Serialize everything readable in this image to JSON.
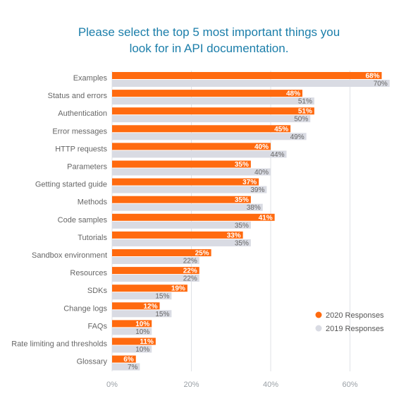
{
  "chart_data": {
    "type": "bar",
    "orientation": "horizontal",
    "title_lines": [
      "Please select the top 5 most important things you",
      "look for in API documentation."
    ],
    "categories": [
      "Examples",
      "Status and errors",
      "Authentication",
      "Error messages",
      "HTTP requests",
      "Parameters",
      "Getting started guide",
      "Methods",
      "Code samples",
      "Tutorials",
      "Sandbox environment",
      "Resources",
      "SDKs",
      "Change logs",
      "FAQs",
      "Rate limiting and thresholds",
      "Glossary"
    ],
    "series": [
      {
        "name": "2020 Responses",
        "color": "#ff6a0f",
        "values": [
          68,
          48,
          51,
          45,
          40,
          35,
          37,
          35,
          41,
          33,
          25,
          22,
          19,
          12,
          10,
          11,
          6
        ]
      },
      {
        "name": "2019 Responses",
        "color": "#d9dbe3",
        "values": [
          70,
          51,
          50,
          49,
          44,
          40,
          39,
          38,
          35,
          35,
          22,
          22,
          15,
          15,
          10,
          10,
          7
        ]
      }
    ],
    "xlim": [
      0,
      70
    ],
    "xticks": [
      "0%",
      "20%",
      "40%",
      "60%"
    ],
    "xtick_values": [
      0,
      20,
      40,
      60
    ],
    "value_suffix": "%",
    "legend_position": "bottom-right",
    "grid": true
  }
}
